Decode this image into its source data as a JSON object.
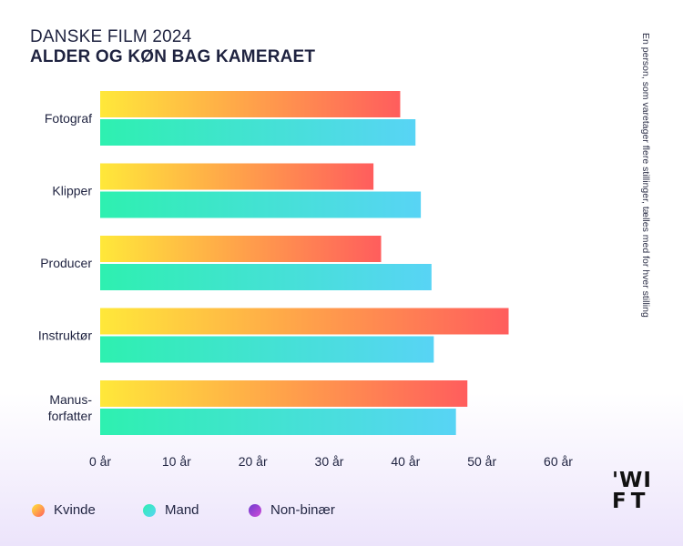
{
  "header": {
    "supertitle": "DANSKE FILM 2024",
    "title": "ALDER OG KØN BAG KAMERAET"
  },
  "note": "En person, som varetager flere stillinger, tælles med for hver stilling",
  "legend": [
    {
      "label": "Kvinde",
      "colors": [
        "#ffe83a",
        "#ff5d5d"
      ]
    },
    {
      "label": "Mand",
      "colors": [
        "#2ef0b0",
        "#58d4f5"
      ]
    },
    {
      "label": "Non-binær",
      "colors": [
        "#6e3ccf",
        "#d04bd8"
      ]
    }
  ],
  "logo": {
    "line1": "'WI",
    "line2": "FT"
  },
  "chart_data": {
    "type": "bar",
    "orientation": "horizontal",
    "categories": [
      "Fotograf",
      "Klipper",
      "Producer",
      "Instruktør",
      "Manus-forfatter"
    ],
    "category_lines": [
      [
        "Fotograf"
      ],
      [
        "Klipper"
      ],
      [
        "Producer"
      ],
      [
        "Instruktør"
      ],
      [
        "Manus-",
        "forfatter"
      ]
    ],
    "series": [
      {
        "name": "Kvinde",
        "values": [
          39.3,
          35.8,
          36.8,
          53.5,
          48.1
        ],
        "gradient": [
          "#ffe83a",
          "#ffa24a",
          "#ff5d5d"
        ]
      },
      {
        "name": "Mand",
        "values": [
          41.3,
          42.0,
          43.4,
          43.7,
          46.6
        ],
        "gradient": [
          "#2ef0b0",
          "#58d4f5"
        ]
      },
      {
        "name": "Non-binær",
        "values": [
          null,
          null,
          null,
          null,
          null
        ],
        "gradient": [
          "#6e3ccf",
          "#d04bd8"
        ]
      }
    ],
    "ticks": [
      0,
      10,
      20,
      30,
      40,
      50,
      60
    ],
    "tick_labels": [
      "0 år",
      "10 år",
      "20 år",
      "30 år",
      "40 år",
      "50 år",
      "60 år"
    ],
    "xlim": [
      0,
      60
    ],
    "grid": false
  }
}
